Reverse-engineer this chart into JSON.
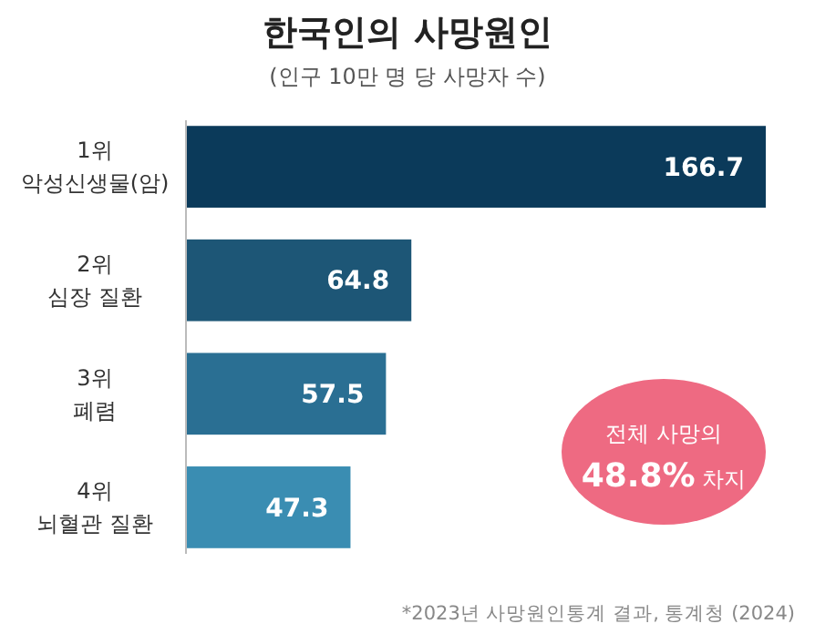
{
  "chart_data": {
    "type": "bar",
    "orientation": "horizontal",
    "title": "한국인의 사망원인",
    "subtitle": "(인구 10만 명 당 사망자 수)",
    "categories": [
      "1위\n악성신생물(암)",
      "2위\n심장 질환",
      "3위\n폐렴",
      "4위\n뇌혈관 질환"
    ],
    "values": [
      166.7,
      64.8,
      57.5,
      47.3
    ],
    "colors": [
      "#0b3a5a",
      "#1d5676",
      "#2a6f93",
      "#3a8db2"
    ],
    "data_labels": true,
    "annotations": [
      "전체 사망의\n48.8% 차지",
      "*2023년 사망원인통계 결과, 통계청 (2024)"
    ]
  }
}
